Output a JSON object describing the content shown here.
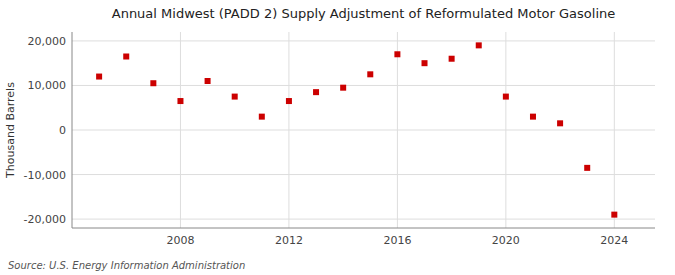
{
  "chart_data": {
    "type": "scatter",
    "title": "Annual Midwest (PADD 2) Supply Adjustment of Reformulated Motor Gasoline",
    "ylabel": "Thousand Barrels",
    "annotations": [
      "Source: U.S. Energy Information Administration"
    ],
    "x": [
      2005,
      2006,
      2007,
      2008,
      2009,
      2010,
      2011,
      2012,
      2013,
      2014,
      2015,
      2016,
      2017,
      2018,
      2019,
      2020,
      2021,
      2022,
      2023,
      2024
    ],
    "values": [
      12000,
      16500,
      10500,
      6500,
      11000,
      7500,
      3000,
      6500,
      8500,
      9500,
      12500,
      17000,
      15000,
      16000,
      19000,
      7500,
      3000,
      1500,
      -8500,
      -19000
    ],
    "color": "#cc0000",
    "marker": "square",
    "xlim": [
      2004.0,
      2025.5
    ],
    "xticks": [
      2008,
      2012,
      2016,
      2020,
      2024
    ],
    "ylim": [
      -22000,
      22000
    ],
    "yticks": [
      {
        "value": -20000,
        "label": "-20,000"
      },
      {
        "value": -10000,
        "label": "-10,000"
      },
      0,
      {
        "value": 10000,
        "label": "10,000"
      },
      {
        "value": 20000,
        "label": "20,000"
      }
    ],
    "grid": true
  }
}
